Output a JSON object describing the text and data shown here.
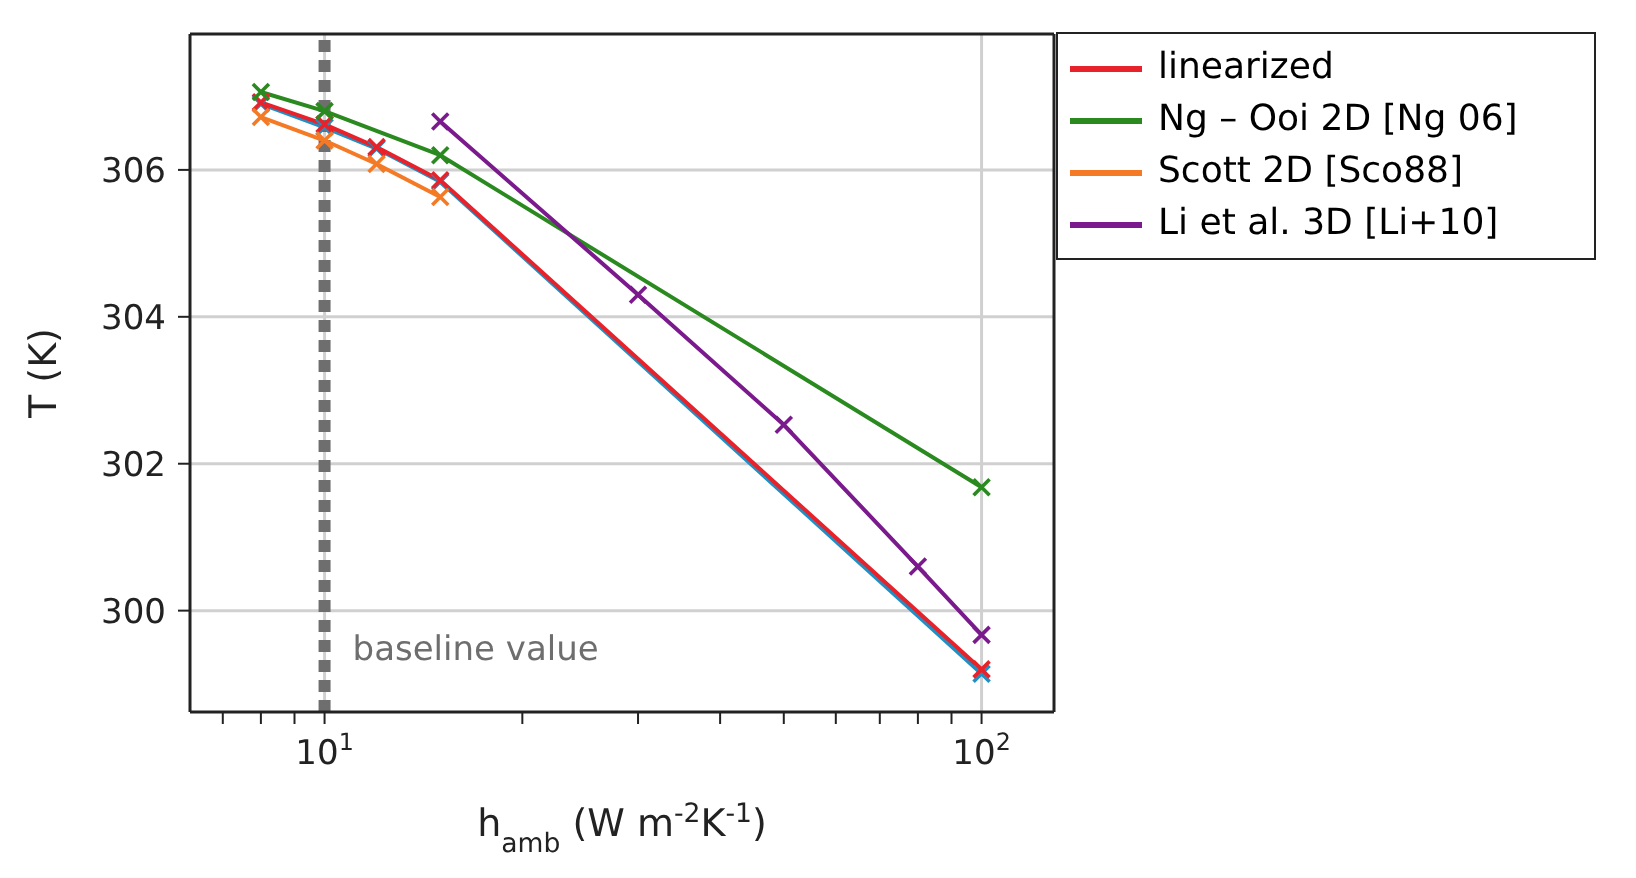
{
  "chart_data": {
    "type": "line",
    "xlabel": "h$_{amb}$ (W m$^{-2}$K$^{-1}$)",
    "ylabel": "T (K)",
    "series": [
      {
        "color": "#1f8fc4",
        "marker": "cross",
        "x": [
          8,
          10,
          12,
          15,
          100
        ],
        "values": [
          306.9,
          306.58,
          306.29,
          305.84,
          299.14
        ]
      },
      {
        "name": "linearized",
        "color": "#e8222a",
        "marker": "cross",
        "x": [
          8,
          10,
          12,
          15,
          100
        ],
        "values": [
          306.92,
          306.62,
          306.31,
          305.86,
          299.2
        ]
      },
      {
        "name": "Ng – Ooi 2D [Ng 06]",
        "color": "#2a8a1f",
        "marker": "cross",
        "x": [
          8,
          10,
          15,
          100
        ],
        "values": [
          307.06,
          306.8,
          306.2,
          301.68
        ]
      },
      {
        "name": "Scott 2D [Sco88]",
        "color": "#f47a26",
        "marker": "cross",
        "x": [
          8,
          10,
          12,
          15
        ],
        "values": [
          306.72,
          306.4,
          306.08,
          305.63
        ]
      },
      {
        "name": "Li et al. 3D [Li+10]",
        "color": "#7a1a8c",
        "marker": "cross",
        "x": [
          15,
          30,
          50,
          80,
          100
        ],
        "values": [
          306.66,
          304.3,
          302.53,
          300.6,
          299.67
        ]
      }
    ],
    "log": "x",
    "xlim": [
      6.24,
      128.9
    ],
    "xticks": [
      {
        "value": 7,
        "label": null
      },
      {
        "value": 8,
        "label": null
      },
      {
        "value": 9,
        "label": null
      },
      {
        "value": 10,
        "label": "10$^{1}$"
      },
      {
        "value": 20,
        "label": null
      },
      {
        "value": 30,
        "label": null
      },
      {
        "value": 40,
        "label": null
      },
      {
        "value": 50,
        "label": null
      },
      {
        "value": 60,
        "label": null
      },
      {
        "value": 70,
        "label": null
      },
      {
        "value": 80,
        "label": null
      },
      {
        "value": 90,
        "label": null
      },
      {
        "value": 100,
        "label": "10$^{2}$"
      }
    ],
    "ylim": [
      298.62,
      307.85
    ],
    "yticks": [
      300,
      302,
      304,
      306
    ],
    "grid": true,
    "legend": "top right",
    "line_style": "solid",
    "ref_lines": [
      {
        "axis": "x",
        "value": 10,
        "label": "baseline value",
        "color": "#6e6e6e",
        "line_style": "dashed"
      }
    ]
  }
}
